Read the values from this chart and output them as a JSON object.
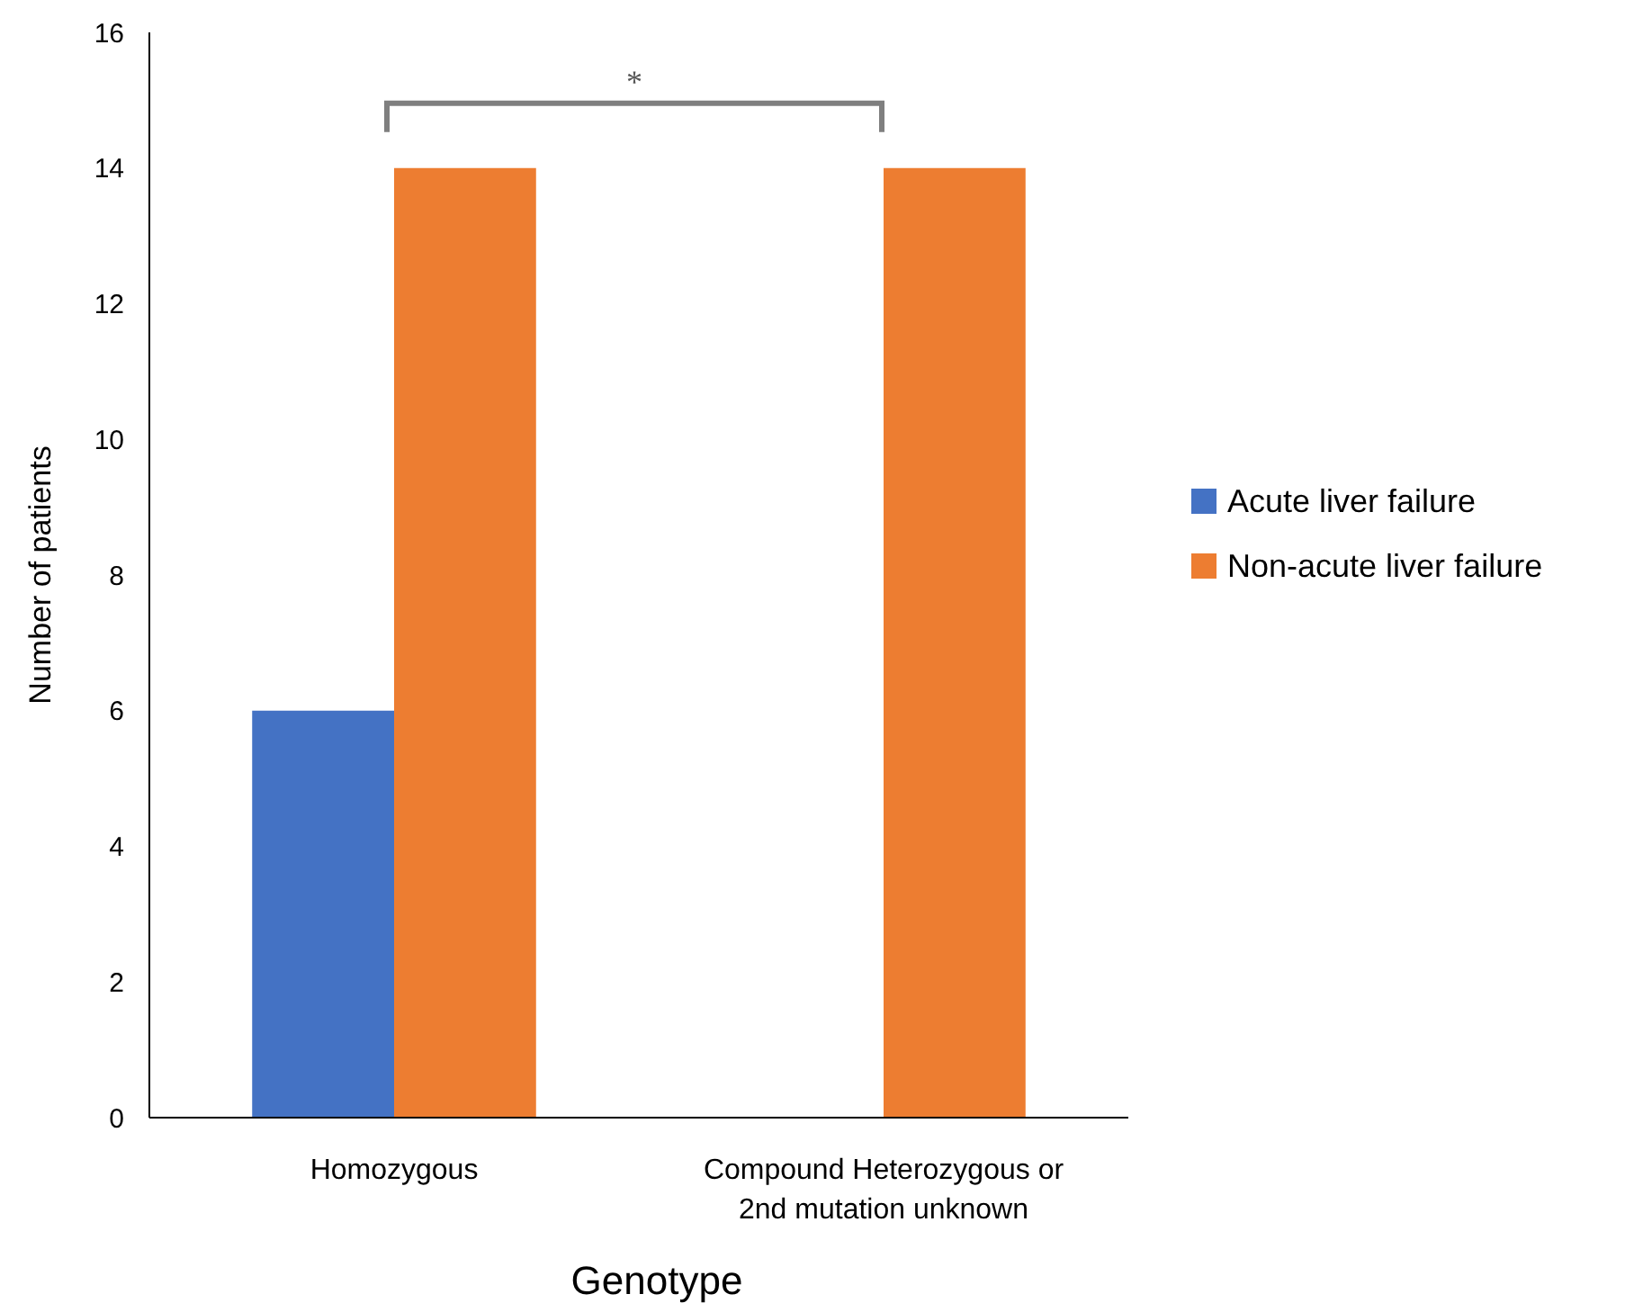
{
  "chart_data": {
    "type": "bar",
    "xlabel": "Genotype",
    "ylabel": "Number of patients",
    "categories": [
      "Homozygous",
      "Compound Heterozygous or 2nd mutation unknown"
    ],
    "series": [
      {
        "name": "Acute liver failure",
        "color": "#4472c4",
        "values": [
          6,
          0
        ]
      },
      {
        "name": "Non-acute liver failure",
        "color": "#ed7d31",
        "values": [
          14,
          14
        ]
      }
    ],
    "ylim": [
      0,
      16
    ],
    "yticks": [
      0,
      2,
      4,
      6,
      8,
      10,
      12,
      14,
      16
    ],
    "grid": false,
    "legend": "right",
    "annotations": [
      "*"
    ]
  }
}
